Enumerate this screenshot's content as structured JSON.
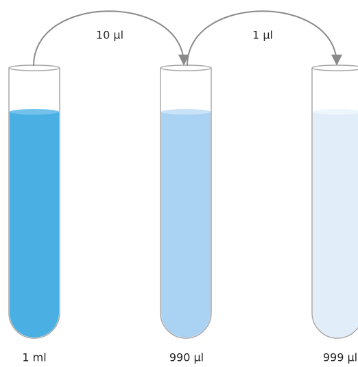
{
  "transfers": [
    {
      "label": "10 μl"
    },
    {
      "label": "1 μl"
    }
  ],
  "tubes": [
    {
      "label": "1 ml"
    },
    {
      "label": "990 μl"
    },
    {
      "label": "999 μl"
    }
  ]
}
